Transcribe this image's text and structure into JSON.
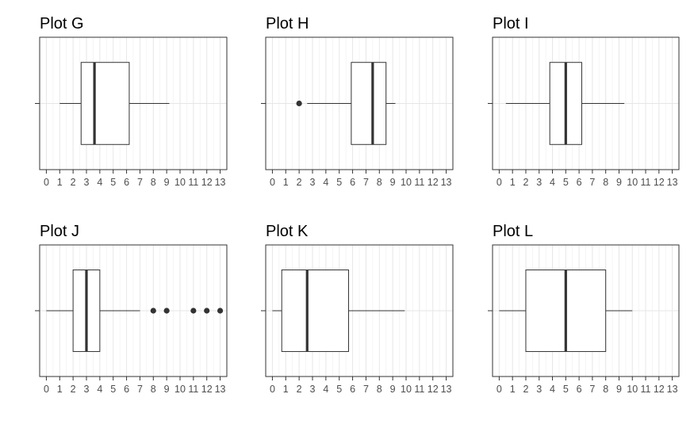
{
  "chart_data": [
    {
      "type": "boxplot",
      "title": "Plot G",
      "xlabel": "",
      "ylabel": "",
      "xlim": [
        -0.5,
        13.5
      ],
      "x_ticks": [
        0,
        1,
        2,
        3,
        4,
        5,
        6,
        7,
        8,
        9,
        10,
        11,
        12,
        13
      ],
      "grid": true,
      "whisker_low": 1.0,
      "q1": 2.6,
      "median": 3.6,
      "q3": 6.2,
      "whisker_high": 9.2,
      "outliers": []
    },
    {
      "type": "boxplot",
      "title": "Plot H",
      "xlabel": "",
      "ylabel": "",
      "xlim": [
        -0.5,
        13.5
      ],
      "x_ticks": [
        0,
        1,
        2,
        3,
        4,
        5,
        6,
        7,
        8,
        9,
        10,
        11,
        12,
        13
      ],
      "grid": true,
      "whisker_low": 2.6,
      "q1": 5.9,
      "median": 7.5,
      "q3": 8.5,
      "whisker_high": 9.2,
      "outliers": [
        2.0
      ]
    },
    {
      "type": "boxplot",
      "title": "Plot I",
      "xlabel": "",
      "ylabel": "",
      "xlim": [
        -0.5,
        13.5
      ],
      "x_ticks": [
        0,
        1,
        2,
        3,
        4,
        5,
        6,
        7,
        8,
        9,
        10,
        11,
        12,
        13
      ],
      "grid": true,
      "whisker_low": 0.5,
      "q1": 3.8,
      "median": 5.0,
      "q3": 6.2,
      "whisker_high": 9.4,
      "outliers": []
    },
    {
      "type": "boxplot",
      "title": "Plot J",
      "xlabel": "",
      "ylabel": "",
      "xlim": [
        -0.5,
        13.5
      ],
      "x_ticks": [
        0,
        1,
        2,
        3,
        4,
        5,
        6,
        7,
        8,
        9,
        10,
        11,
        12,
        13
      ],
      "grid": true,
      "whisker_low": 0.0,
      "q1": 2.0,
      "median": 3.0,
      "q3": 4.0,
      "whisker_high": 7.0,
      "outliers": [
        8,
        9,
        11,
        12,
        13
      ]
    },
    {
      "type": "boxplot",
      "title": "Plot K",
      "xlabel": "",
      "ylabel": "",
      "xlim": [
        -0.5,
        13.5
      ],
      "x_ticks": [
        0,
        1,
        2,
        3,
        4,
        5,
        6,
        7,
        8,
        9,
        10,
        11,
        12,
        13
      ],
      "grid": true,
      "whisker_low": 0.0,
      "q1": 0.7,
      "median": 2.6,
      "q3": 5.7,
      "whisker_high": 9.9,
      "outliers": []
    },
    {
      "type": "boxplot",
      "title": "Plot L",
      "xlabel": "",
      "ylabel": "",
      "xlim": [
        -0.5,
        13.5
      ],
      "x_ticks": [
        0,
        1,
        2,
        3,
        4,
        5,
        6,
        7,
        8,
        9,
        10,
        11,
        12,
        13
      ],
      "grid": true,
      "whisker_low": 0.0,
      "q1": 2.0,
      "median": 5.0,
      "q3": 8.0,
      "whisker_high": 10.0,
      "outliers": []
    }
  ]
}
